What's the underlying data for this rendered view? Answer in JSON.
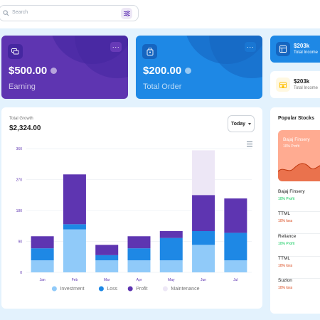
{
  "search": {
    "placeholder": "Search"
  },
  "cards": {
    "earning": {
      "amount": "$500.00",
      "label": "Earning",
      "menu": "···"
    },
    "order": {
      "amount": "$200.00",
      "label": "Total Order",
      "menu": "···"
    }
  },
  "mini_cards": [
    {
      "amount": "$203k",
      "label": "Total Income"
    },
    {
      "amount": "$203k",
      "label": "Total Income"
    }
  ],
  "growth": {
    "label": "Total Growth",
    "total": "$2,324.00",
    "filter": "Today"
  },
  "chart_data": {
    "type": "bar",
    "stacked": true,
    "categories": [
      "Jan",
      "Feb",
      "Mar",
      "Apr",
      "May",
      "Jun",
      "Jul"
    ],
    "series": [
      {
        "name": "Investment",
        "color": "#90caf9",
        "values": [
          35,
          125,
          35,
          35,
          35,
          80,
          35
        ]
      },
      {
        "name": "Loss",
        "color": "#1e88e5",
        "values": [
          35,
          15,
          15,
          35,
          65,
          40,
          80
        ]
      },
      {
        "name": "Profit",
        "color": "#5e35b1",
        "values": [
          35,
          145,
          30,
          35,
          20,
          105,
          100
        ]
      },
      {
        "name": "Maintenance",
        "color": "#ede7f6",
        "values": [
          0,
          0,
          0,
          0,
          0,
          130,
          0
        ]
      }
    ],
    "yticks": [
      0,
      90,
      180,
      270,
      360
    ],
    "ylim": [
      0,
      360
    ],
    "grid": true,
    "legend": "bottom"
  },
  "stocks": {
    "title": "Popular Stocks",
    "hero": {
      "name": "Bajaj Finsery",
      "change": "10% Profit"
    },
    "items": [
      {
        "name": "Bajaj Finsery",
        "change": "10% Profit",
        "trend": "up"
      },
      {
        "name": "TTML",
        "change": "10% loss",
        "trend": "down"
      },
      {
        "name": "Reliance",
        "change": "10% Profit",
        "trend": "up"
      },
      {
        "name": "TTML",
        "change": "10% loss",
        "trend": "down"
      },
      {
        "name": "Suzlon",
        "change": "10% loss",
        "trend": "down"
      }
    ]
  }
}
